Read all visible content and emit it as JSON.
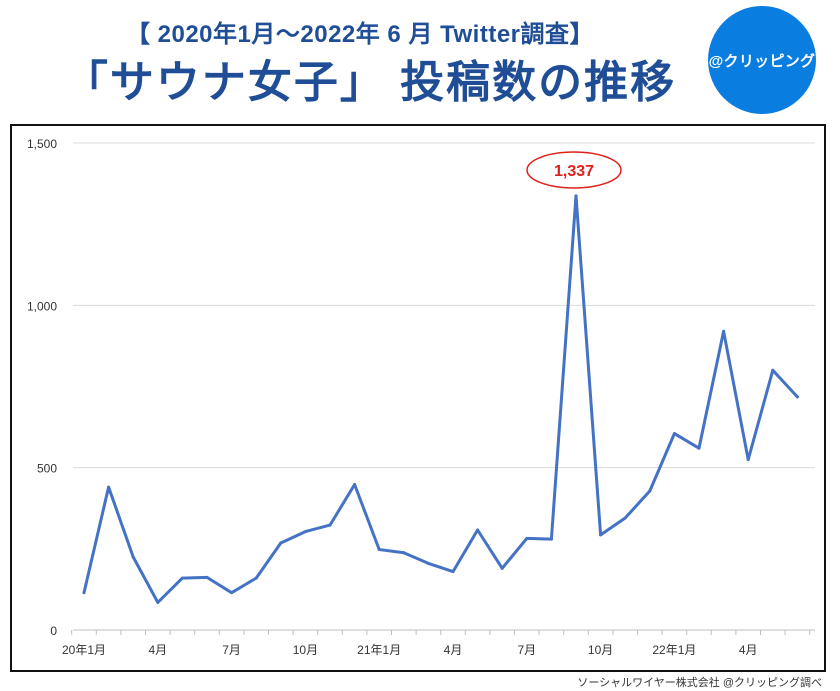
{
  "header": {
    "subtitle": "【 2020年1月〜2022年 6 月 Twitter調査】",
    "title": "「サウナ女子」 投稿数の推移",
    "badge_text": "@クリッピング"
  },
  "source_note": "ソーシャルワイヤー株式会社 @クリッピング調べ",
  "colors": {
    "line": "#4472c4",
    "title": "#1f4e96",
    "badge": "#0a7de0",
    "annotation": "#e0201b"
  },
  "chart_data": {
    "type": "line",
    "title": "「サウナ女子」 投稿数の推移",
    "xlabel": "",
    "ylabel": "",
    "ylim": [
      0,
      1500
    ],
    "y_ticks": [
      0,
      500,
      1000,
      1500
    ],
    "y_tick_labels": [
      "0",
      "500",
      "1,000",
      "1,500"
    ],
    "categories": [
      "2020-01",
      "2020-02",
      "2020-03",
      "2020-04",
      "2020-05",
      "2020-06",
      "2020-07",
      "2020-08",
      "2020-09",
      "2020-10",
      "2020-11",
      "2020-12",
      "2021-01",
      "2021-02",
      "2021-03",
      "2021-04",
      "2021-05",
      "2021-06",
      "2021-07",
      "2021-08",
      "2021-09",
      "2021-10",
      "2021-11",
      "2021-12",
      "2022-01",
      "2022-02",
      "2022-03",
      "2022-04",
      "2022-05",
      "2022-06"
    ],
    "x_tick_labels": [
      {
        "index": 0,
        "label": "20年1月"
      },
      {
        "index": 3,
        "label": "4月"
      },
      {
        "index": 6,
        "label": "7月"
      },
      {
        "index": 9,
        "label": "10月"
      },
      {
        "index": 12,
        "label": "21年1月"
      },
      {
        "index": 15,
        "label": "4月"
      },
      {
        "index": 18,
        "label": "7月"
      },
      {
        "index": 21,
        "label": "10月"
      },
      {
        "index": 24,
        "label": "22年1月"
      },
      {
        "index": 27,
        "label": "4月"
      }
    ],
    "series": [
      {
        "name": "投稿数",
        "values": [
          115,
          440,
          225,
          85,
          160,
          162,
          115,
          160,
          268,
          303,
          323,
          448,
          248,
          238,
          205,
          180,
          308,
          190,
          282,
          280,
          1337,
          293,
          345,
          428,
          605,
          560,
          920,
          525,
          800,
          718
        ]
      }
    ],
    "annotation": {
      "index": 20,
      "label": "1,337"
    },
    "grid": "horizontal",
    "legend": "none"
  }
}
